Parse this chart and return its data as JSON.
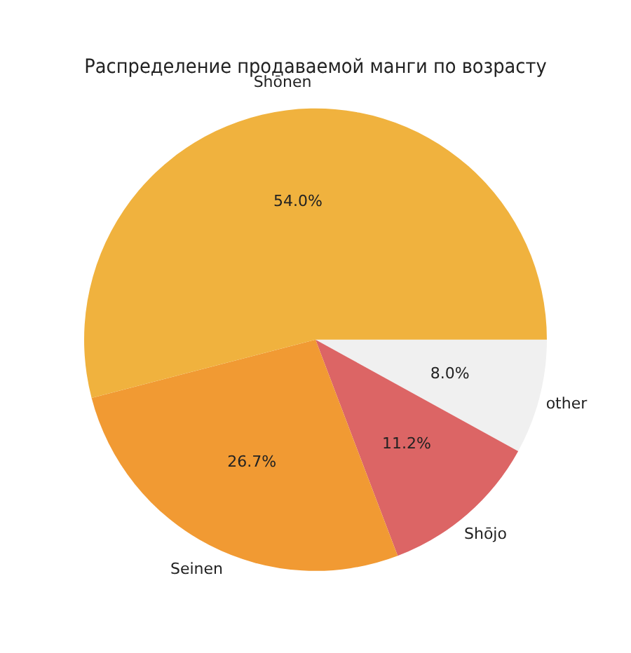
{
  "chart_data": {
    "type": "pie",
    "title": "Распределение продаваемой манги по возрасту",
    "categories": [
      "Shōnen",
      "Seinen",
      "Shōjo",
      "other"
    ],
    "values": [
      54.0,
      26.7,
      11.2,
      8.0
    ],
    "colors": [
      "#f0b23e",
      "#f19a33",
      "#dc6565",
      "#f0f0f0"
    ],
    "value_labels": [
      "54.0%",
      "26.7%",
      "11.2%",
      "8.0%"
    ],
    "legend": false
  }
}
